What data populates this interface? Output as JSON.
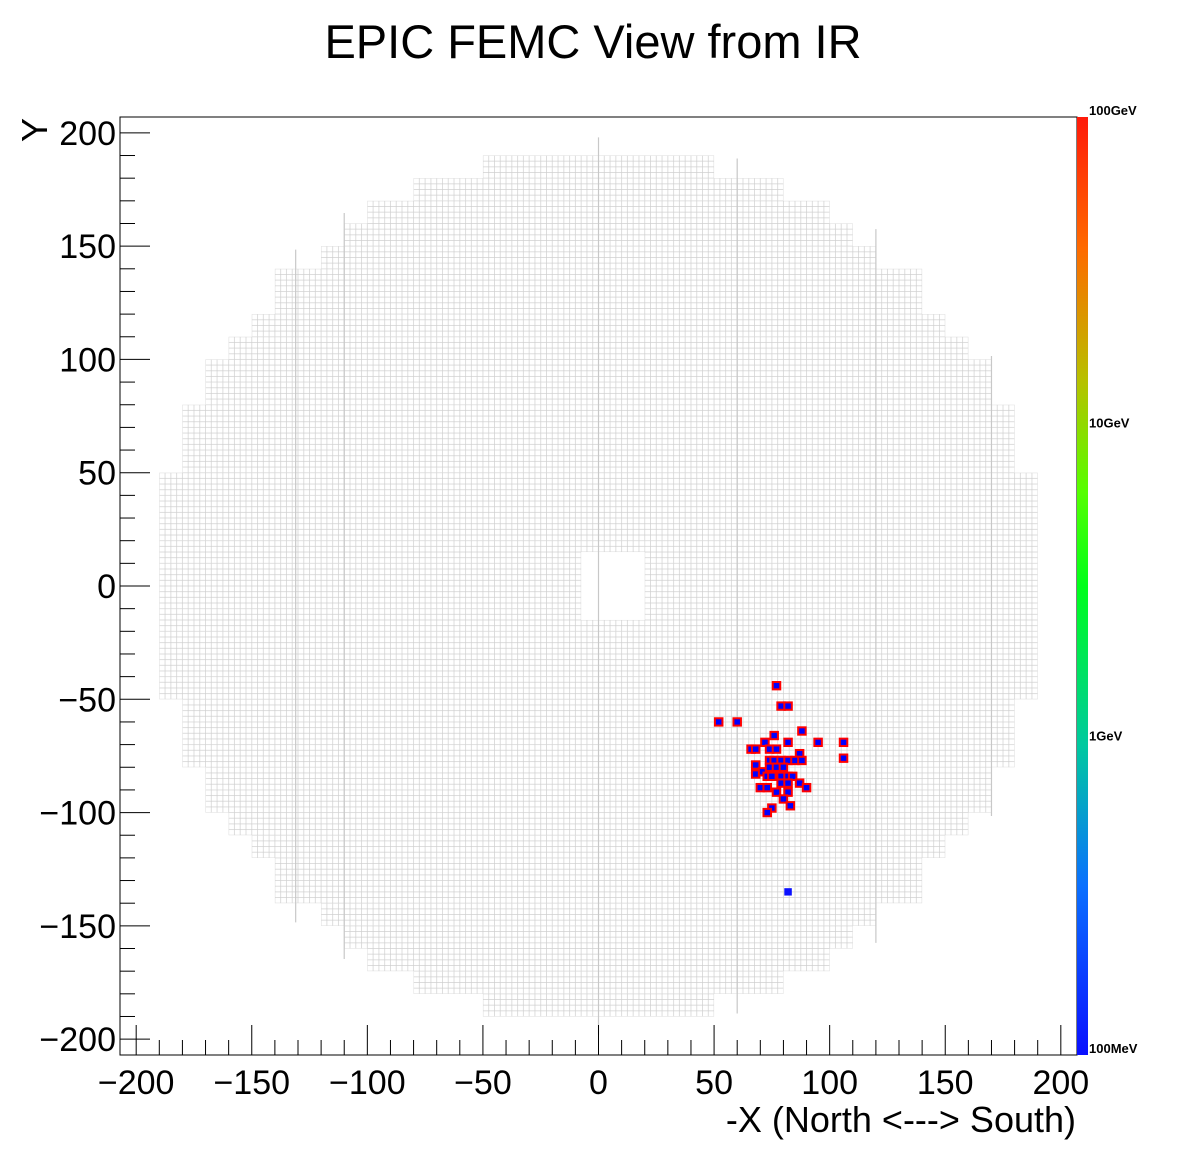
{
  "chart_data": {
    "type": "heatmap",
    "title": "EPIC FEMC View from IR",
    "xlabel": "-X (North <---> South)",
    "ylabel": "Y",
    "xlim": [
      -207,
      207
    ],
    "ylim": [
      -207,
      207
    ],
    "x_ticks": [
      -200,
      -150,
      -100,
      -50,
      0,
      50,
      100,
      150,
      200
    ],
    "y_ticks": [
      -200,
      -150,
      -100,
      -50,
      0,
      50,
      100,
      150,
      200
    ],
    "colorbar": {
      "scale": "log",
      "range_gev": [
        0.1,
        100
      ],
      "labels": [
        {
          "text": "100GeV",
          "value": 100
        },
        {
          "text": "10GeV",
          "value": 10
        },
        {
          "text": "1GeV",
          "value": 1
        },
        {
          "text": "100MeV",
          "value": 0.1
        }
      ]
    },
    "detector": {
      "cell_size": 2.5,
      "outer_radius": 198,
      "beam_hole": {
        "x": [
          -7.5,
          20
        ],
        "y": [
          -15,
          15
        ]
      },
      "colors": {
        "outline": "#cfcfcf",
        "hit_border": "#ff0000",
        "hit_fill": "#0000ff"
      }
    },
    "hits": [
      {
        "x": 52,
        "y": -60
      },
      {
        "x": 60,
        "y": -60
      },
      {
        "x": 77,
        "y": -44
      },
      {
        "x": 79,
        "y": -53
      },
      {
        "x": 82,
        "y": -53
      },
      {
        "x": 88,
        "y": -64
      },
      {
        "x": 66,
        "y": -72
      },
      {
        "x": 68,
        "y": -72
      },
      {
        "x": 72,
        "y": -69
      },
      {
        "x": 76,
        "y": -66
      },
      {
        "x": 74,
        "y": -72
      },
      {
        "x": 77,
        "y": -72
      },
      {
        "x": 82,
        "y": -69
      },
      {
        "x": 95,
        "y": -69
      },
      {
        "x": 106,
        "y": -69
      },
      {
        "x": 87,
        "y": -74
      },
      {
        "x": 106,
        "y": -76
      },
      {
        "x": 68,
        "y": -79
      },
      {
        "x": 68,
        "y": -83
      },
      {
        "x": 71,
        "y": -82
      },
      {
        "x": 74,
        "y": -77
      },
      {
        "x": 76,
        "y": -77
      },
      {
        "x": 79,
        "y": -77
      },
      {
        "x": 82,
        "y": -77
      },
      {
        "x": 85,
        "y": -77
      },
      {
        "x": 88,
        "y": -77
      },
      {
        "x": 74,
        "y": -80
      },
      {
        "x": 77,
        "y": -80
      },
      {
        "x": 80,
        "y": -80
      },
      {
        "x": 73,
        "y": -84
      },
      {
        "x": 75,
        "y": -84
      },
      {
        "x": 79,
        "y": -84
      },
      {
        "x": 82,
        "y": -84
      },
      {
        "x": 84,
        "y": -84
      },
      {
        "x": 70,
        "y": -89
      },
      {
        "x": 73,
        "y": -89
      },
      {
        "x": 79,
        "y": -87
      },
      {
        "x": 82,
        "y": -87
      },
      {
        "x": 87,
        "y": -87
      },
      {
        "x": 77,
        "y": -91
      },
      {
        "x": 82,
        "y": -91
      },
      {
        "x": 90,
        "y": -89
      },
      {
        "x": 80,
        "y": -94
      },
      {
        "x": 75,
        "y": -98
      },
      {
        "x": 73,
        "y": -100
      },
      {
        "x": 83,
        "y": -97
      },
      {
        "x": 82,
        "y": -135,
        "low": true
      }
    ]
  }
}
